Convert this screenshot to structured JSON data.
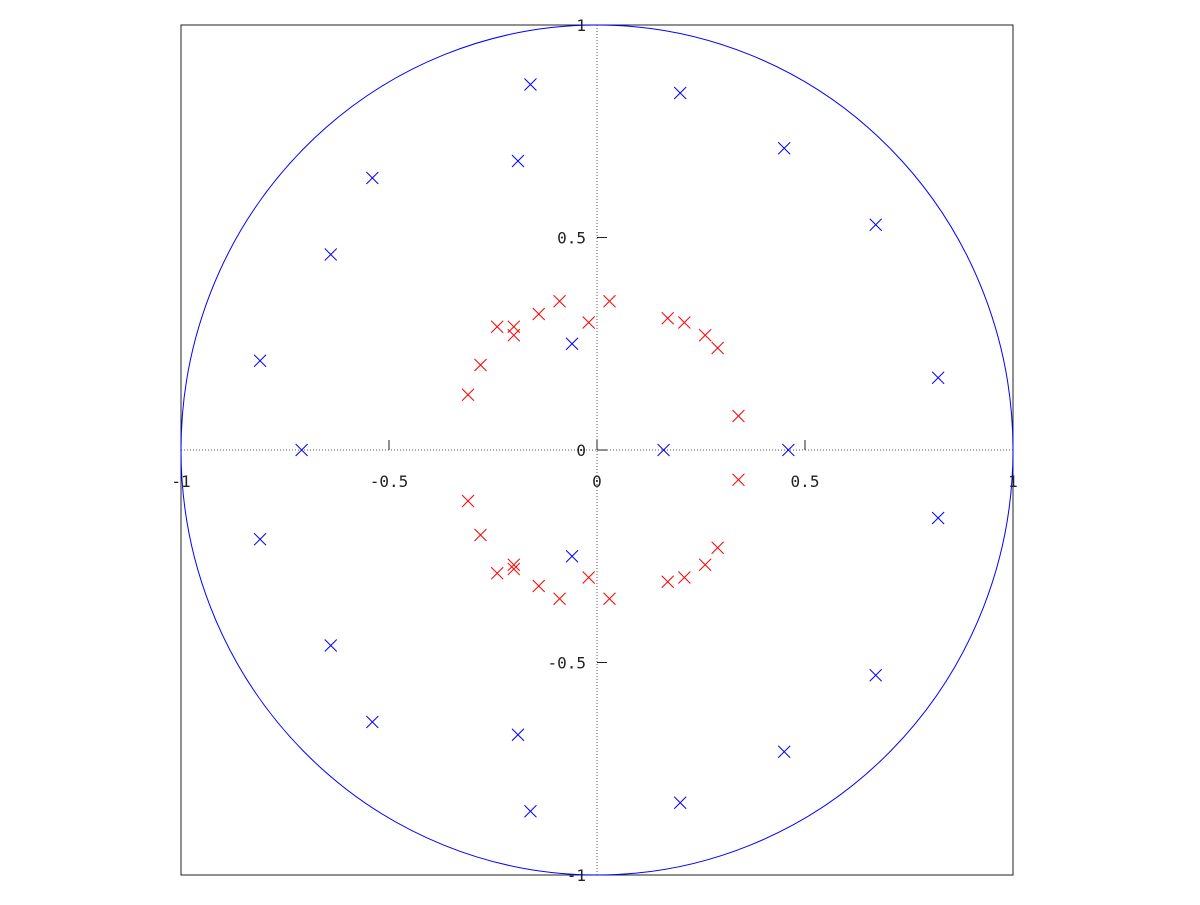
{
  "chart_data": {
    "type": "scatter",
    "title": "",
    "xlabel": "",
    "ylabel": "",
    "xlim": [
      -1,
      1
    ],
    "ylim": [
      -1,
      1
    ],
    "grid": false,
    "frame": true,
    "axes_through_origin": true,
    "x_tick_values": [
      -1,
      -0.5,
      0,
      0.5,
      1
    ],
    "x_tick_labels": [
      "-1",
      "-0.5",
      "0",
      "0.5",
      "1"
    ],
    "y_tick_values": [
      1,
      0.5,
      0,
      -0.5,
      -1
    ],
    "y_tick_labels": [
      "1",
      "0.5",
      "0",
      "-0.5",
      "-1"
    ],
    "unit_circle": {
      "radius": 1,
      "color": "#0000ff"
    },
    "marker": "x",
    "series": [
      {
        "color": "#0000ff",
        "points": [
          [
            -0.16,
            0.86
          ],
          [
            0.2,
            0.84
          ],
          [
            -0.19,
            0.68
          ],
          [
            0.45,
            0.71
          ],
          [
            -0.54,
            0.64
          ],
          [
            0.67,
            0.53
          ],
          [
            -0.64,
            0.46
          ],
          [
            -0.81,
            0.21
          ],
          [
            0.82,
            0.17
          ],
          [
            -0.06,
            0.25
          ],
          [
            -0.71,
            0.0
          ],
          [
            0.16,
            0.0
          ],
          [
            0.46,
            0.0
          ],
          [
            -0.06,
            -0.25
          ],
          [
            -0.81,
            -0.21
          ],
          [
            0.82,
            -0.16
          ],
          [
            -0.64,
            -0.46
          ],
          [
            0.67,
            -0.53
          ],
          [
            -0.54,
            -0.64
          ],
          [
            -0.19,
            -0.67
          ],
          [
            0.45,
            -0.71
          ],
          [
            0.2,
            -0.83
          ],
          [
            -0.16,
            -0.85
          ]
        ]
      },
      {
        "color": "#ff0000",
        "points": [
          [
            -0.09,
            0.35
          ],
          [
            0.03,
            0.35
          ],
          [
            -0.14,
            0.32
          ],
          [
            -0.02,
            0.3
          ],
          [
            0.17,
            0.31
          ],
          [
            0.21,
            0.3
          ],
          [
            -0.24,
            0.29
          ],
          [
            -0.2,
            0.29
          ],
          [
            -0.2,
            0.27
          ],
          [
            0.26,
            0.27
          ],
          [
            0.29,
            0.24
          ],
          [
            -0.28,
            0.2
          ],
          [
            -0.31,
            0.13
          ],
          [
            0.34,
            0.08
          ],
          [
            0.34,
            -0.07
          ],
          [
            -0.31,
            -0.12
          ],
          [
            -0.28,
            -0.2
          ],
          [
            0.29,
            -0.23
          ],
          [
            0.26,
            -0.27
          ],
          [
            -0.2,
            -0.27
          ],
          [
            -0.24,
            -0.29
          ],
          [
            -0.2,
            -0.28
          ],
          [
            0.17,
            -0.31
          ],
          [
            0.21,
            -0.3
          ],
          [
            -0.02,
            -0.3
          ],
          [
            -0.14,
            -0.32
          ],
          [
            -0.09,
            -0.35
          ],
          [
            0.03,
            -0.35
          ]
        ]
      }
    ]
  }
}
